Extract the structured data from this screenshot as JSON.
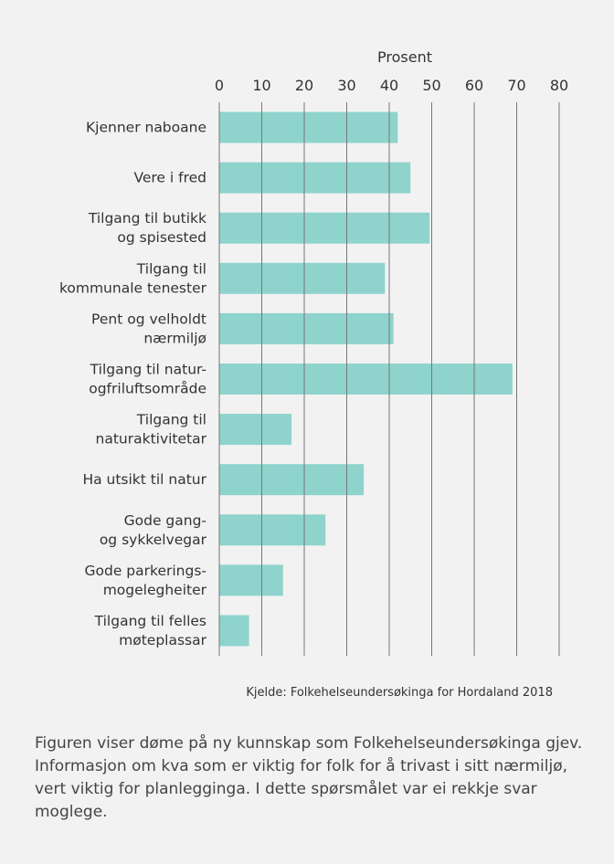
{
  "chart_data": {
    "type": "bar",
    "orientation": "horizontal",
    "x_label": "Prosent",
    "categories": [
      "Kjenner naboane",
      "Vere i fred",
      "Tilgang til butikk\nog spisested",
      "Tilgang til\nkommunale tenester",
      "Pent og velholdt\nnærmiljø",
      "Tilgang til natur-\nogfriluftsområde",
      "Tilgang til\nnaturaktivitetar",
      "Ha utsikt til natur",
      "Gode gang-\nog sykkelvegar",
      "Gode parkerings-\nmogelegheiter",
      "Tilgang til felles\nmøteplassar"
    ],
    "values": [
      42,
      45,
      49.5,
      39,
      41,
      69,
      17,
      34,
      25,
      15,
      7
    ],
    "color": "#8fd3cd",
    "xlim": [
      0,
      80
    ],
    "xticks": [
      0,
      10,
      20,
      30,
      40,
      50,
      60,
      70,
      80
    ],
    "grid": true,
    "source": "Kjelde: Folkehelseundersøkinga for Hordaland 2018"
  },
  "caption": "Figuren viser døme på ny kunnskap som Folkehelseundersøkinga gjev. Informasjon om kva som er viktig for folk for å trivast i sitt nærmiljø, vert viktig for planlegginga. I dette spørsmålet var ei rekkje svar moglege."
}
